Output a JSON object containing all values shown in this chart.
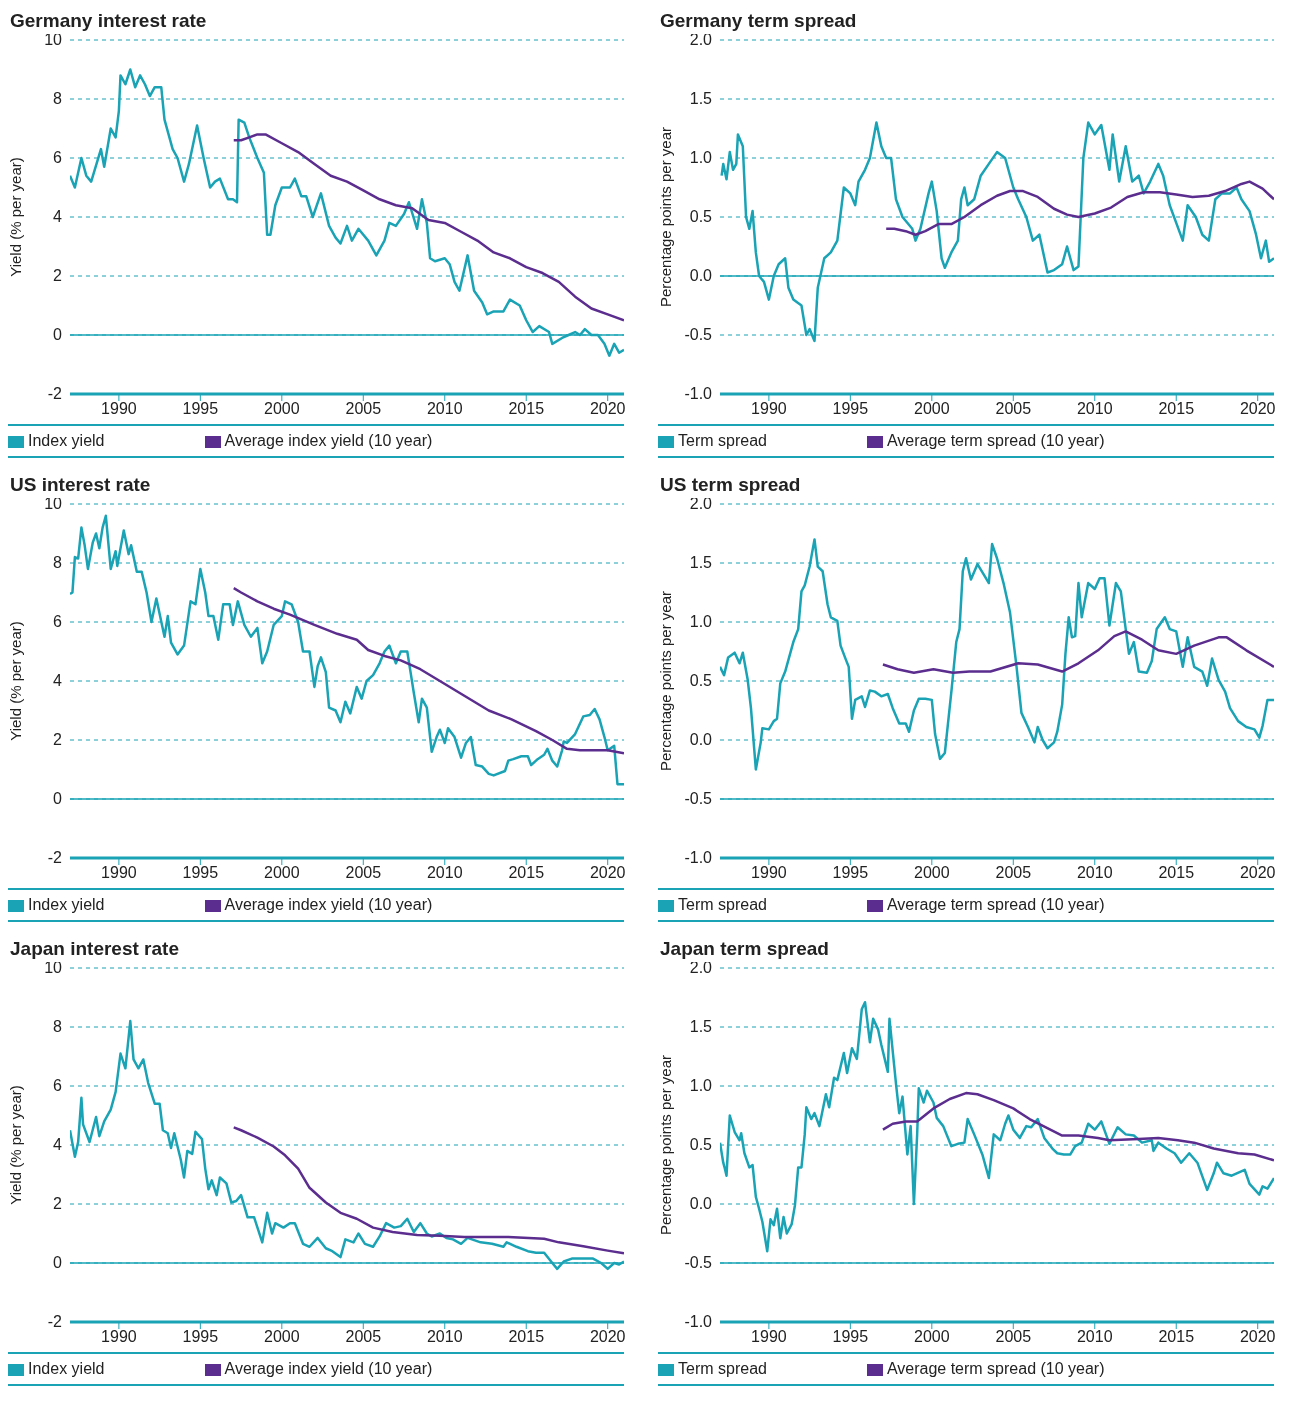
{
  "chart_data": [
    {
      "type": "line",
      "title": "Germany interest rate",
      "ylabel": "Yield (% per year)",
      "xlim": [
        1987,
        2021
      ],
      "xticks": [
        1990,
        1995,
        2000,
        2005,
        2010,
        2015,
        2020
      ],
      "ylim": [
        -2,
        10
      ],
      "yticks": [
        -2,
        0,
        2,
        4,
        6,
        8,
        10
      ],
      "grid": "y",
      "legend": "bottom",
      "marker": "none",
      "ref_lines": [
        {
          "axis": "y",
          "value": 0,
          "color": "#1aa3b5"
        }
      ],
      "series": [
        {
          "name": "Index yield",
          "color": "#1aa3b5",
          "x": [
            1987.0,
            1987.3,
            1987.7,
            1988.0,
            1988.3,
            1988.9,
            1989.1,
            1989.5,
            1989.8,
            1990.0,
            1990.1,
            1990.4,
            1990.7,
            1991.0,
            1991.3,
            1991.6,
            1991.9,
            1992.2,
            1992.6,
            1992.8,
            1993.3,
            1993.6,
            1994.0,
            1994.3,
            1994.8,
            1995.2,
            1995.6,
            1995.9,
            1996.2,
            1996.7,
            1997.0,
            1997.25,
            1997.35,
            1997.7,
            1998.0,
            1998.5,
            1998.9,
            1999.1,
            1999.3,
            1999.6,
            2000.0,
            2000.5,
            2000.8,
            2001.2,
            2001.5,
            2001.9,
            2002.4,
            2002.9,
            2003.3,
            2003.6,
            2004.0,
            2004.3,
            2004.7,
            2005.3,
            2005.8,
            2006.3,
            2006.6,
            2007.0,
            2007.5,
            2007.8,
            2008.3,
            2008.6,
            2008.9,
            2009.1,
            2009.4,
            2010.0,
            2010.3,
            2010.6,
            2010.9,
            2011.4,
            2011.8,
            2012.3,
            2012.6,
            2013.0,
            2013.6,
            2014.0,
            2014.6,
            2015.0,
            2015.4,
            2015.8,
            2016.4,
            2016.6,
            2017.2,
            2017.6,
            2018.0,
            2018.3,
            2018.6,
            2019.0,
            2019.4,
            2019.8,
            2020.1,
            2020.4,
            2020.7,
            2021.0
          ],
          "values": [
            5.4,
            5.0,
            6.0,
            5.4,
            5.2,
            6.3,
            5.7,
            7.0,
            6.7,
            7.6,
            8.8,
            8.5,
            9.0,
            8.4,
            8.8,
            8.5,
            8.1,
            8.4,
            8.4,
            7.3,
            6.3,
            6.0,
            5.2,
            5.8,
            7.1,
            6.0,
            5.0,
            5.2,
            5.3,
            4.6,
            4.6,
            4.5,
            7.3,
            7.2,
            6.7,
            6.0,
            5.5,
            3.4,
            3.4,
            4.4,
            5.0,
            5.0,
            5.3,
            4.7,
            4.7,
            4.0,
            4.8,
            3.7,
            3.3,
            3.1,
            3.7,
            3.2,
            3.6,
            3.2,
            2.7,
            3.2,
            3.8,
            3.7,
            4.1,
            4.5,
            3.6,
            4.6,
            3.8,
            2.6,
            2.5,
            2.6,
            2.4,
            1.8,
            1.5,
            2.7,
            1.5,
            1.1,
            0.7,
            0.8,
            0.8,
            1.2,
            1.0,
            0.5,
            0.1,
            0.3,
            0.1,
            -0.3,
            -0.1,
            0.0,
            0.1,
            0.0,
            0.2,
            0.0,
            0.0,
            -0.3,
            -0.7,
            -0.3,
            -0.6,
            -0.5
          ]
        },
        {
          "name": "Average index yield (10 year)",
          "color": "#5b2d8e",
          "x": [
            1997.05,
            1997.5,
            1998.0,
            1998.5,
            1999.0,
            2000.0,
            2001.0,
            2002.0,
            2003.0,
            2004.0,
            2005.0,
            2006.0,
            2007.0,
            2008.0,
            2009.0,
            2010.0,
            2011.0,
            2012.0,
            2013.0,
            2014.0,
            2015.0,
            2016.0,
            2017.0,
            2018.0,
            2019.0,
            2020.0,
            2021.0
          ],
          "values": [
            6.6,
            6.6,
            6.7,
            6.8,
            6.8,
            6.5,
            6.2,
            5.8,
            5.4,
            5.2,
            4.9,
            4.6,
            4.4,
            4.3,
            3.9,
            3.8,
            3.5,
            3.2,
            2.8,
            2.6,
            2.3,
            2.1,
            1.8,
            1.3,
            0.9,
            0.7,
            0.5
          ]
        }
      ]
    },
    {
      "type": "line",
      "title": "Germany term spread",
      "ylabel": "Percentage points per year",
      "xlim": [
        1987,
        2021
      ],
      "xticks": [
        1990,
        1995,
        2000,
        2005,
        2010,
        2015,
        2020
      ],
      "ylim": [
        -1,
        2
      ],
      "yticks": [
        {
          "value": -1,
          "label": "-1.0"
        },
        -0.5,
        {
          "value": 0,
          "label": "0.0"
        },
        0.5,
        {
          "value": 1,
          "label": "1.0"
        },
        1.5,
        {
          "value": 2,
          "label": "2.0"
        }
      ],
      "grid": "y",
      "legend": "bottom",
      "marker": "none",
      "ref_lines": [
        {
          "axis": "y",
          "value": 0,
          "color": "#1aa3b5"
        }
      ],
      "series": [
        {
          "name": "Term spread",
          "color": "#1aa3b5",
          "x": [
            1987.1,
            1987.2,
            1987.4,
            1987.6,
            1987.8,
            1988.0,
            1988.1,
            1988.4,
            1988.6,
            1988.8,
            1989.0,
            1989.2,
            1989.4,
            1989.7,
            1990.0,
            1990.3,
            1990.6,
            1991.0,
            1991.2,
            1991.5,
            1992.0,
            1992.3,
            1992.5,
            1992.8,
            1993.0,
            1993.4,
            1993.8,
            1994.2,
            1994.6,
            1995.0,
            1995.3,
            1995.5,
            1995.9,
            1996.2,
            1996.6,
            1996.9,
            1997.2,
            1997.5,
            1997.8,
            1998.2,
            1998.8,
            1999.0,
            1999.3,
            1999.8,
            2000.0,
            2000.3,
            2000.6,
            2000.8,
            2001.2,
            2001.6,
            2001.8,
            2002.0,
            2002.2,
            2002.6,
            2003.0,
            2003.5,
            2004.0,
            2004.5,
            2005.0,
            2005.3,
            2005.8,
            2006.2,
            2006.6,
            2007.1,
            2007.5,
            2008.0,
            2008.3,
            2008.7,
            2009.0,
            2009.3,
            2009.6,
            2010.0,
            2010.4,
            2010.9,
            2011.1,
            2011.5,
            2011.9,
            2012.3,
            2012.7,
            2013.0,
            2013.4,
            2013.9,
            2014.2,
            2014.6,
            2015.0,
            2015.4,
            2015.7,
            2016.2,
            2016.6,
            2017.0,
            2017.4,
            2017.8,
            2018.3,
            2018.7,
            2019.0,
            2019.5,
            2019.9,
            2020.2,
            2020.5,
            2020.7,
            2021.0
          ],
          "values": [
            0.85,
            0.95,
            0.82,
            1.05,
            0.9,
            0.95,
            1.2,
            1.1,
            0.5,
            0.4,
            0.55,
            0.2,
            0.0,
            -0.05,
            -0.2,
            0.0,
            0.1,
            0.15,
            -0.1,
            -0.2,
            -0.25,
            -0.5,
            -0.45,
            -0.55,
            -0.1,
            0.15,
            0.2,
            0.3,
            0.75,
            0.7,
            0.6,
            0.8,
            0.9,
            1.0,
            1.3,
            1.1,
            1.0,
            1.0,
            0.65,
            0.5,
            0.4,
            0.3,
            0.4,
            0.7,
            0.8,
            0.55,
            0.15,
            0.07,
            0.2,
            0.3,
            0.65,
            0.75,
            0.6,
            0.65,
            0.85,
            0.95,
            1.05,
            1.0,
            0.75,
            0.65,
            0.5,
            0.3,
            0.35,
            0.03,
            0.05,
            0.1,
            0.25,
            0.05,
            0.08,
            1.0,
            1.3,
            1.2,
            1.28,
            0.9,
            1.2,
            0.8,
            1.1,
            0.8,
            0.85,
            0.7,
            0.8,
            0.95,
            0.85,
            0.6,
            0.45,
            0.3,
            0.6,
            0.5,
            0.35,
            0.3,
            0.65,
            0.7,
            0.7,
            0.75,
            0.65,
            0.55,
            0.35,
            0.15,
            0.3,
            0.12,
            0.15
          ]
        },
        {
          "name": "Average term spread (10 year)",
          "color": "#5b2d8e",
          "x": [
            1997.2,
            1997.7,
            1998.4,
            1999.0,
            1999.6,
            2000.4,
            2001.2,
            2002.0,
            2003.0,
            2004.0,
            2004.8,
            2005.6,
            2006.5,
            2007.5,
            2008.3,
            2009.0,
            2010.0,
            2011.0,
            2012.0,
            2013.0,
            2014.0,
            2015.0,
            2016.0,
            2017.0,
            2018.0,
            2019.0,
            2019.5,
            2020.3,
            2021.0
          ],
          "values": [
            0.4,
            0.4,
            0.38,
            0.35,
            0.38,
            0.44,
            0.44,
            0.5,
            0.6,
            0.68,
            0.72,
            0.72,
            0.67,
            0.57,
            0.52,
            0.5,
            0.53,
            0.58,
            0.67,
            0.71,
            0.71,
            0.69,
            0.67,
            0.68,
            0.72,
            0.78,
            0.8,
            0.74,
            0.65
          ]
        }
      ]
    },
    {
      "type": "line",
      "title": "US interest rate",
      "ylabel": "Yield (% per year)",
      "xlim": [
        1987,
        2021
      ],
      "xticks": [
        1990,
        1995,
        2000,
        2005,
        2010,
        2015,
        2020
      ],
      "ylim": [
        -2,
        10
      ],
      "yticks": [
        -2,
        0,
        2,
        4,
        6,
        8,
        10
      ],
      "grid": "y",
      "legend": "bottom",
      "marker": "none",
      "ref_lines": [
        {
          "axis": "y",
          "value": 0,
          "color": "#1aa3b5"
        }
      ],
      "series": [
        {
          "name": "Index yield",
          "color": "#1aa3b5",
          "x": [
            1987.0,
            1987.15,
            1987.3,
            1987.5,
            1987.7,
            1987.9,
            1988.1,
            1988.4,
            1988.6,
            1988.8,
            1989.0,
            1989.2,
            1989.5,
            1989.8,
            1989.9,
            1990.3,
            1990.6,
            1990.75,
            1991.1,
            1991.4,
            1991.7,
            1992.0,
            1992.3,
            1992.8,
            1993.0,
            1993.2,
            1993.6,
            1994.0,
            1994.4,
            1994.7,
            1995.0,
            1995.3,
            1995.5,
            1995.8,
            1996.1,
            1996.4,
            1996.8,
            1997.0,
            1997.3,
            1997.7,
            1998.1,
            1998.5,
            1998.8,
            1999.1,
            1999.5,
            2000.0,
            2000.2,
            2000.6,
            2001.0,
            2001.3,
            2001.7,
            2002.0,
            2002.2,
            2002.4,
            2002.7,
            2002.9,
            2003.3,
            2003.6,
            2003.9,
            2004.2,
            2004.6,
            2004.9,
            2005.2,
            2005.6,
            2006.0,
            2006.3,
            2006.6,
            2007.0,
            2007.3,
            2007.7,
            2007.9,
            2008.1,
            2008.4,
            2008.6,
            2008.9,
            2009.2,
            2009.5,
            2009.7,
            2010.0,
            2010.2,
            2010.6,
            2011.0,
            2011.3,
            2011.6,
            2011.9,
            2012.3,
            2012.7,
            2013.0,
            2013.7,
            2013.9,
            2014.2,
            2014.7,
            2015.1,
            2015.3,
            2015.7,
            2016.1,
            2016.3,
            2016.6,
            2016.9,
            2017.2,
            2017.3,
            2017.5,
            2018.0,
            2018.5,
            2018.9,
            2019.2,
            2019.5,
            2019.8,
            2020.0,
            2020.4,
            2020.6,
            2021.0
          ],
          "values": [
            6.95,
            7.0,
            8.2,
            8.15,
            9.2,
            8.6,
            7.8,
            8.7,
            9.0,
            8.5,
            9.2,
            9.6,
            7.8,
            8.4,
            7.9,
            9.1,
            8.3,
            8.6,
            7.7,
            7.7,
            7.0,
            6.0,
            6.8,
            5.5,
            6.2,
            5.3,
            4.9,
            5.2,
            6.7,
            6.6,
            7.8,
            7.0,
            6.2,
            6.2,
            5.4,
            6.6,
            6.6,
            5.9,
            6.7,
            5.9,
            5.5,
            5.8,
            4.6,
            5.0,
            5.9,
            6.2,
            6.7,
            6.6,
            6.0,
            5.0,
            5.0,
            3.8,
            4.5,
            4.8,
            4.3,
            3.1,
            3.0,
            2.6,
            3.3,
            2.9,
            3.8,
            3.4,
            4.0,
            4.2,
            4.6,
            5.0,
            5.2,
            4.6,
            5.0,
            5.0,
            4.3,
            3.6,
            2.6,
            3.4,
            3.1,
            1.6,
            2.1,
            2.35,
            1.9,
            2.4,
            2.1,
            1.4,
            1.9,
            2.1,
            1.15,
            1.1,
            0.85,
            0.8,
            0.95,
            1.3,
            1.35,
            1.45,
            1.45,
            1.15,
            1.35,
            1.5,
            1.7,
            1.3,
            1.1,
            1.65,
            1.95,
            1.9,
            2.2,
            2.8,
            2.85,
            3.05,
            2.7,
            2.1,
            1.65,
            1.8,
            0.5,
            0.5
          ]
        },
        {
          "name": "Average index yield (10 year)",
          "color": "#5b2d8e",
          "x": [
            1997.05,
            1997.5,
            1998.5,
            1999.5,
            2000.5,
            2002.0,
            2003.4,
            2004.6,
            2005.3,
            2006.3,
            2007.3,
            2008.5,
            2009.7,
            2011.2,
            2012.7,
            2014.1,
            2015.6,
            2016.6,
            2017.5,
            2018.3,
            2019.2,
            2020.0,
            2021.0
          ],
          "values": [
            7.15,
            7.0,
            6.7,
            6.45,
            6.25,
            5.9,
            5.6,
            5.4,
            5.05,
            4.85,
            4.7,
            4.4,
            4.0,
            3.5,
            3.0,
            2.7,
            2.3,
            2.0,
            1.7,
            1.65,
            1.65,
            1.65,
            1.55
          ]
        }
      ]
    },
    {
      "type": "line",
      "title": "US term spread",
      "ylabel": "Percentage points per year",
      "xlim": [
        1987,
        2021
      ],
      "xticks": [
        1990,
        1995,
        2000,
        2005,
        2010,
        2015,
        2020
      ],
      "ylim": [
        -1,
        2
      ],
      "yticks": [
        {
          "value": -1,
          "label": "-1.0"
        },
        -0.5,
        {
          "value": 0,
          "label": "0.0"
        },
        0.5,
        {
          "value": 1,
          "label": "1.0"
        },
        1.5,
        {
          "value": 2,
          "label": "2.0"
        }
      ],
      "grid": "y",
      "legend": "bottom",
      "marker": "none",
      "ref_lines": [
        {
          "axis": "y",
          "value": -0.5,
          "color": "#1aa3b5"
        }
      ],
      "series": [
        {
          "name": "Term spread",
          "color": "#1aa3b5",
          "x": [
            1987.0,
            1987.25,
            1987.5,
            1987.9,
            1988.2,
            1988.4,
            1988.7,
            1988.9,
            1989.2,
            1989.5,
            1989.6,
            1990.0,
            1990.3,
            1990.5,
            1990.7,
            1991.0,
            1991.5,
            1991.8,
            1992.0,
            1992.2,
            1992.5,
            1992.8,
            1993.0,
            1993.3,
            1993.6,
            1993.8,
            1994.2,
            1994.4,
            1994.7,
            1994.9,
            1995.1,
            1995.3,
            1995.7,
            1995.9,
            1996.2,
            1996.5,
            1996.9,
            1997.3,
            1997.6,
            1998.0,
            1998.4,
            1998.6,
            1998.9,
            1999.2,
            1999.6,
            2000.0,
            2000.2,
            2000.5,
            2000.8,
            2001.2,
            2001.5,
            2001.7,
            2001.9,
            2002.1,
            2002.4,
            2002.8,
            2003.2,
            2003.5,
            2003.7,
            2004.0,
            2004.4,
            2004.8,
            2005.2,
            2005.5,
            2005.9,
            2006.3,
            2006.5,
            2006.8,
            2007.1,
            2007.5,
            2007.7,
            2008.0,
            2008.2,
            2008.4,
            2008.6,
            2008.8,
            2009.0,
            2009.2,
            2009.6,
            2010.0,
            2010.3,
            2010.6,
            2010.9,
            2011.3,
            2011.6,
            2011.9,
            2012.1,
            2012.4,
            2012.7,
            2013.2,
            2013.5,
            2013.8,
            2014.3,
            2014.6,
            2015.0,
            2015.4,
            2015.7,
            2016.1,
            2016.6,
            2016.9,
            2017.2,
            2017.6,
            2018.0,
            2018.3,
            2018.8,
            2019.3,
            2019.8,
            2020.1,
            2020.3,
            2020.6,
            2021.0
          ],
          "values": [
            0.62,
            0.55,
            0.7,
            0.74,
            0.65,
            0.74,
            0.51,
            0.27,
            -0.25,
            -0.02,
            0.1,
            0.09,
            0.16,
            0.18,
            0.48,
            0.58,
            0.83,
            0.94,
            1.26,
            1.31,
            1.47,
            1.7,
            1.47,
            1.43,
            1.15,
            1.04,
            1.01,
            0.8,
            0.69,
            0.62,
            0.18,
            0.34,
            0.37,
            0.28,
            0.42,
            0.41,
            0.37,
            0.39,
            0.27,
            0.14,
            0.14,
            0.07,
            0.25,
            0.35,
            0.35,
            0.34,
            0.05,
            -0.16,
            -0.11,
            0.41,
            0.83,
            0.94,
            1.43,
            1.54,
            1.36,
            1.49,
            1.4,
            1.33,
            1.66,
            1.54,
            1.33,
            1.08,
            0.62,
            0.23,
            0.11,
            -0.02,
            0.11,
            0.0,
            -0.07,
            -0.02,
            0.07,
            0.3,
            0.73,
            1.04,
            0.87,
            0.88,
            1.33,
            1.04,
            1.33,
            1.28,
            1.37,
            1.37,
            0.97,
            1.33,
            1.26,
            0.94,
            0.73,
            0.83,
            0.58,
            0.57,
            0.67,
            0.94,
            1.04,
            0.94,
            0.92,
            0.62,
            0.87,
            0.62,
            0.58,
            0.46,
            0.69,
            0.51,
            0.41,
            0.27,
            0.16,
            0.11,
            0.09,
            0.02,
            0.12,
            0.34,
            0.34
          ]
        },
        {
          "name": "Average term spread (10 year)",
          "color": "#5b2d8e",
          "x": [
            1997.0,
            1997.9,
            1998.9,
            2000.1,
            2001.3,
            2002.3,
            2003.6,
            2005.3,
            2006.5,
            2008.0,
            2009.0,
            2010.2,
            2011.2,
            2011.9,
            2012.9,
            2013.9,
            2015.0,
            2016.1,
            2017.6,
            2018.1,
            2019.3,
            2021.0
          ],
          "values": [
            0.64,
            0.6,
            0.57,
            0.6,
            0.57,
            0.58,
            0.58,
            0.65,
            0.64,
            0.58,
            0.65,
            0.76,
            0.88,
            0.92,
            0.85,
            0.76,
            0.73,
            0.8,
            0.87,
            0.87,
            0.76,
            0.62
          ]
        }
      ]
    },
    {
      "type": "line",
      "title": "Japan interest rate",
      "ylabel": "Yield (% per year)",
      "xlim": [
        1987,
        2021
      ],
      "xticks": [
        1990,
        1995,
        2000,
        2005,
        2010,
        2015,
        2020
      ],
      "ylim": [
        -2,
        10
      ],
      "yticks": [
        -2,
        0,
        2,
        4,
        6,
        8,
        10
      ],
      "grid": "y",
      "legend": "bottom",
      "marker": "none",
      "ref_lines": [
        {
          "axis": "y",
          "value": 0,
          "color": "#1aa3b5"
        }
      ],
      "series": [
        {
          "name": "Index yield",
          "color": "#1aa3b5",
          "x": [
            1987.0,
            1987.3,
            1987.5,
            1987.7,
            1987.8,
            1988.2,
            1988.6,
            1988.8,
            1989.1,
            1989.5,
            1989.8,
            1990.1,
            1990.4,
            1990.7,
            1990.9,
            1991.2,
            1991.5,
            1991.8,
            1992.2,
            1992.5,
            1992.7,
            1993.0,
            1993.2,
            1993.4,
            1993.8,
            1994.0,
            1994.2,
            1994.5,
            1994.7,
            1995.1,
            1995.3,
            1995.5,
            1995.7,
            1996.0,
            1996.2,
            1996.6,
            1996.9,
            1997.2,
            1997.5,
            1997.9,
            1998.3,
            1998.8,
            1999.1,
            1999.4,
            1999.6,
            2000.1,
            2000.5,
            2000.8,
            2001.3,
            2001.7,
            2002.2,
            2002.7,
            2003.1,
            2003.6,
            2003.9,
            2004.4,
            2004.7,
            2005.1,
            2005.6,
            2006.0,
            2006.4,
            2006.9,
            2007.3,
            2007.7,
            2008.1,
            2008.5,
            2008.9,
            2009.2,
            2009.7,
            2010.1,
            2010.5,
            2011.0,
            2011.4,
            2012.2,
            2012.9,
            2013.6,
            2013.8,
            2014.4,
            2015.1,
            2015.6,
            2016.1,
            2016.6,
            2016.9,
            2017.3,
            2017.8,
            2018.5,
            2019.1,
            2019.6,
            2020.0,
            2020.4,
            2020.7,
            2021.0
          ],
          "values": [
            4.5,
            3.6,
            4.1,
            5.6,
            4.7,
            4.1,
            4.95,
            4.3,
            4.8,
            5.2,
            5.8,
            7.1,
            6.6,
            8.2,
            6.9,
            6.6,
            6.9,
            6.1,
            5.4,
            5.4,
            4.5,
            4.4,
            3.9,
            4.4,
            3.5,
            2.9,
            3.8,
            3.7,
            4.45,
            4.2,
            3.2,
            2.5,
            2.8,
            2.3,
            2.9,
            2.7,
            2.05,
            2.1,
            2.3,
            1.55,
            1.55,
            0.7,
            1.7,
            1.0,
            1.35,
            1.2,
            1.35,
            1.35,
            0.65,
            0.55,
            0.85,
            0.5,
            0.4,
            0.2,
            0.8,
            0.7,
            1.0,
            0.65,
            0.55,
            0.9,
            1.35,
            1.2,
            1.25,
            1.5,
            1.05,
            1.35,
            1.0,
            0.9,
            1.0,
            0.85,
            0.8,
            0.65,
            0.85,
            0.7,
            0.65,
            0.55,
            0.7,
            0.55,
            0.4,
            0.35,
            0.35,
            0.0,
            -0.2,
            0.05,
            0.15,
            0.15,
            0.15,
            0.0,
            -0.2,
            0.0,
            -0.05,
            0.05
          ]
        },
        {
          "name": "Average index yield (10 year)",
          "color": "#5b2d8e",
          "x": [
            1997.05,
            1997.5,
            1998.5,
            1999.5,
            2000.2,
            2001.0,
            2001.7,
            2002.7,
            2003.6,
            2004.6,
            2005.6,
            2006.8,
            2008.3,
            2009.7,
            2011.2,
            2013.9,
            2016.1,
            2017.0,
            2018.5,
            2020.0,
            2021.0
          ],
          "values": [
            4.6,
            4.5,
            4.25,
            3.95,
            3.65,
            3.2,
            2.55,
            2.05,
            1.7,
            1.5,
            1.2,
            1.05,
            0.95,
            0.92,
            0.88,
            0.88,
            0.82,
            0.7,
            0.57,
            0.42,
            0.33
          ]
        }
      ]
    },
    {
      "type": "line",
      "title": "Japan term spread",
      "ylabel": "Percentage points per year",
      "xlim": [
        1987,
        2021
      ],
      "xticks": [
        1990,
        1995,
        2000,
        2005,
        2010,
        2015,
        2020
      ],
      "ylim": [
        -1,
        2
      ],
      "yticks": [
        {
          "value": -1,
          "label": "-1.0"
        },
        -0.5,
        {
          "value": 0,
          "label": "0.0"
        },
        0.5,
        {
          "value": 1,
          "label": "1.0"
        },
        1.5,
        {
          "value": 2,
          "label": "2.0"
        }
      ],
      "grid": "y",
      "legend": "bottom",
      "marker": "none",
      "ref_lines": [
        {
          "axis": "y",
          "value": -0.5,
          "color": "#1aa3b5"
        }
      ],
      "series": [
        {
          "name": "Term spread",
          "color": "#1aa3b5",
          "x": [
            1987.0,
            1987.2,
            1987.3,
            1987.4,
            1987.6,
            1987.9,
            1988.2,
            1988.3,
            1988.5,
            1988.8,
            1989.0,
            1989.2,
            1989.4,
            1989.6,
            1989.9,
            1990.1,
            1990.3,
            1990.5,
            1990.7,
            1990.9,
            1991.1,
            1991.4,
            1991.6,
            1991.8,
            1992.0,
            1992.2,
            1992.3,
            1992.6,
            1992.8,
            1993.1,
            1993.5,
            1993.7,
            1994.0,
            1994.2,
            1994.6,
            1994.8,
            1995.1,
            1995.4,
            1995.7,
            1995.9,
            1996.2,
            1996.4,
            1996.7,
            1996.9,
            1997.3,
            1997.4,
            1997.8,
            1998.0,
            1998.2,
            1998.5,
            1998.7,
            1998.9,
            1999.1,
            1999.2,
            1999.5,
            1999.7,
            2000.1,
            2000.3,
            2000.7,
            2001.2,
            2001.6,
            2002.0,
            2002.2,
            2002.6,
            2003.1,
            2003.5,
            2003.8,
            2004.2,
            2004.5,
            2004.7,
            2005.0,
            2005.4,
            2005.8,
            2006.1,
            2006.5,
            2006.9,
            2007.4,
            2007.7,
            2008.1,
            2008.5,
            2008.8,
            2009.2,
            2009.6,
            2010.0,
            2010.4,
            2010.9,
            2011.4,
            2011.9,
            2012.4,
            2012.9,
            2013.5,
            2013.6,
            2013.9,
            2014.4,
            2014.9,
            2015.3,
            2015.8,
            2016.3,
            2016.9,
            2017.3,
            2017.5,
            2017.9,
            2018.4,
            2019.2,
            2019.5,
            2020.1,
            2020.3,
            2020.6,
            2021.0
          ],
          "values": [
            0.52,
            0.35,
            0.3,
            0.24,
            0.75,
            0.61,
            0.54,
            0.6,
            0.43,
            0.31,
            0.33,
            0.06,
            -0.04,
            -0.15,
            -0.4,
            -0.13,
            -0.18,
            -0.04,
            -0.29,
            -0.11,
            -0.25,
            -0.17,
            -0.01,
            0.31,
            0.31,
            0.59,
            0.82,
            0.72,
            0.77,
            0.66,
            0.93,
            0.82,
            1.07,
            1.05,
            1.28,
            1.11,
            1.32,
            1.23,
            1.65,
            1.71,
            1.37,
            1.57,
            1.48,
            1.35,
            1.12,
            1.57,
            1.02,
            0.77,
            0.91,
            0.42,
            0.66,
            0.0,
            0.59,
            0.98,
            0.86,
            0.96,
            0.86,
            0.73,
            0.66,
            0.49,
            0.51,
            0.52,
            0.72,
            0.59,
            0.42,
            0.22,
            0.59,
            0.54,
            0.68,
            0.75,
            0.63,
            0.56,
            0.66,
            0.65,
            0.72,
            0.56,
            0.47,
            0.43,
            0.42,
            0.42,
            0.49,
            0.52,
            0.68,
            0.63,
            0.7,
            0.51,
            0.65,
            0.59,
            0.58,
            0.52,
            0.54,
            0.45,
            0.52,
            0.47,
            0.43,
            0.35,
            0.43,
            0.35,
            0.12,
            0.26,
            0.35,
            0.26,
            0.24,
            0.29,
            0.17,
            0.08,
            0.15,
            0.13,
            0.22
          ]
        },
        {
          "name": "Average term spread (10 year)",
          "color": "#5b2d8e",
          "x": [
            1997.0,
            1997.6,
            1998.4,
            1999.1,
            2000.1,
            2001.1,
            2002.1,
            2002.8,
            2003.8,
            2005.0,
            2006.0,
            2007.0,
            2008.0,
            2009.0,
            2010.2,
            2010.9,
            2012.7,
            2013.9,
            2015.1,
            2016.1,
            2017.3,
            2018.8,
            2019.8,
            2021.0
          ],
          "values": [
            0.63,
            0.68,
            0.7,
            0.7,
            0.81,
            0.89,
            0.94,
            0.93,
            0.88,
            0.81,
            0.72,
            0.65,
            0.58,
            0.58,
            0.56,
            0.54,
            0.55,
            0.56,
            0.54,
            0.52,
            0.47,
            0.43,
            0.42,
            0.37
          ]
        }
      ]
    }
  ]
}
